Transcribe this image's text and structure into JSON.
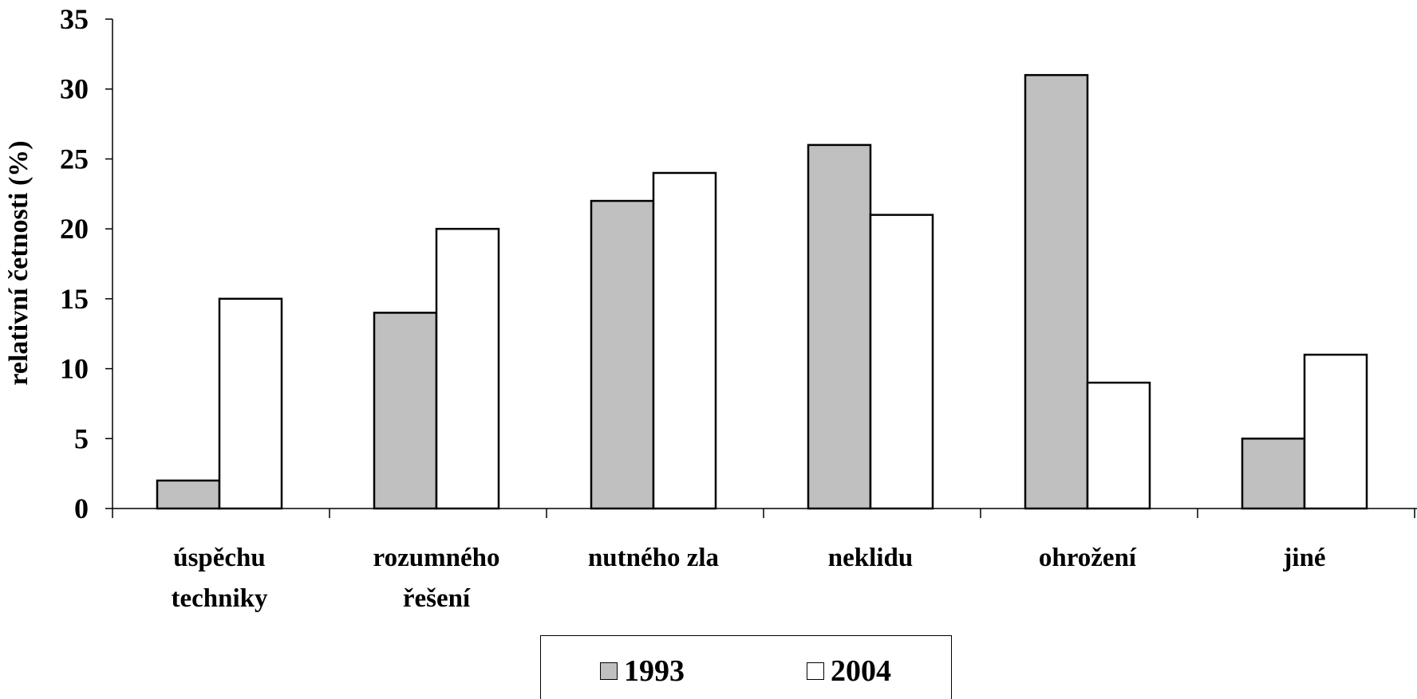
{
  "chart_data": {
    "type": "bar",
    "ylabel": "relativní četnosti (%)",
    "ylim": [
      0,
      35
    ],
    "yticks": [
      0,
      5,
      10,
      15,
      20,
      25,
      30,
      35
    ],
    "categories": [
      [
        "úspěchu",
        "techniky"
      ],
      [
        "rozumného",
        "řešení"
      ],
      [
        "nutného zla"
      ],
      [
        "neklidu"
      ],
      [
        "ohrožení"
      ],
      [
        "jiné"
      ]
    ],
    "series": [
      {
        "name": "1993",
        "color": "#c0c0c0",
        "values": [
          2,
          14,
          22,
          26,
          31,
          5
        ]
      },
      {
        "name": "2004",
        "color": "#ffffff",
        "values": [
          15,
          20,
          24,
          21,
          9,
          11
        ]
      }
    ],
    "legend_position": "bottom"
  }
}
